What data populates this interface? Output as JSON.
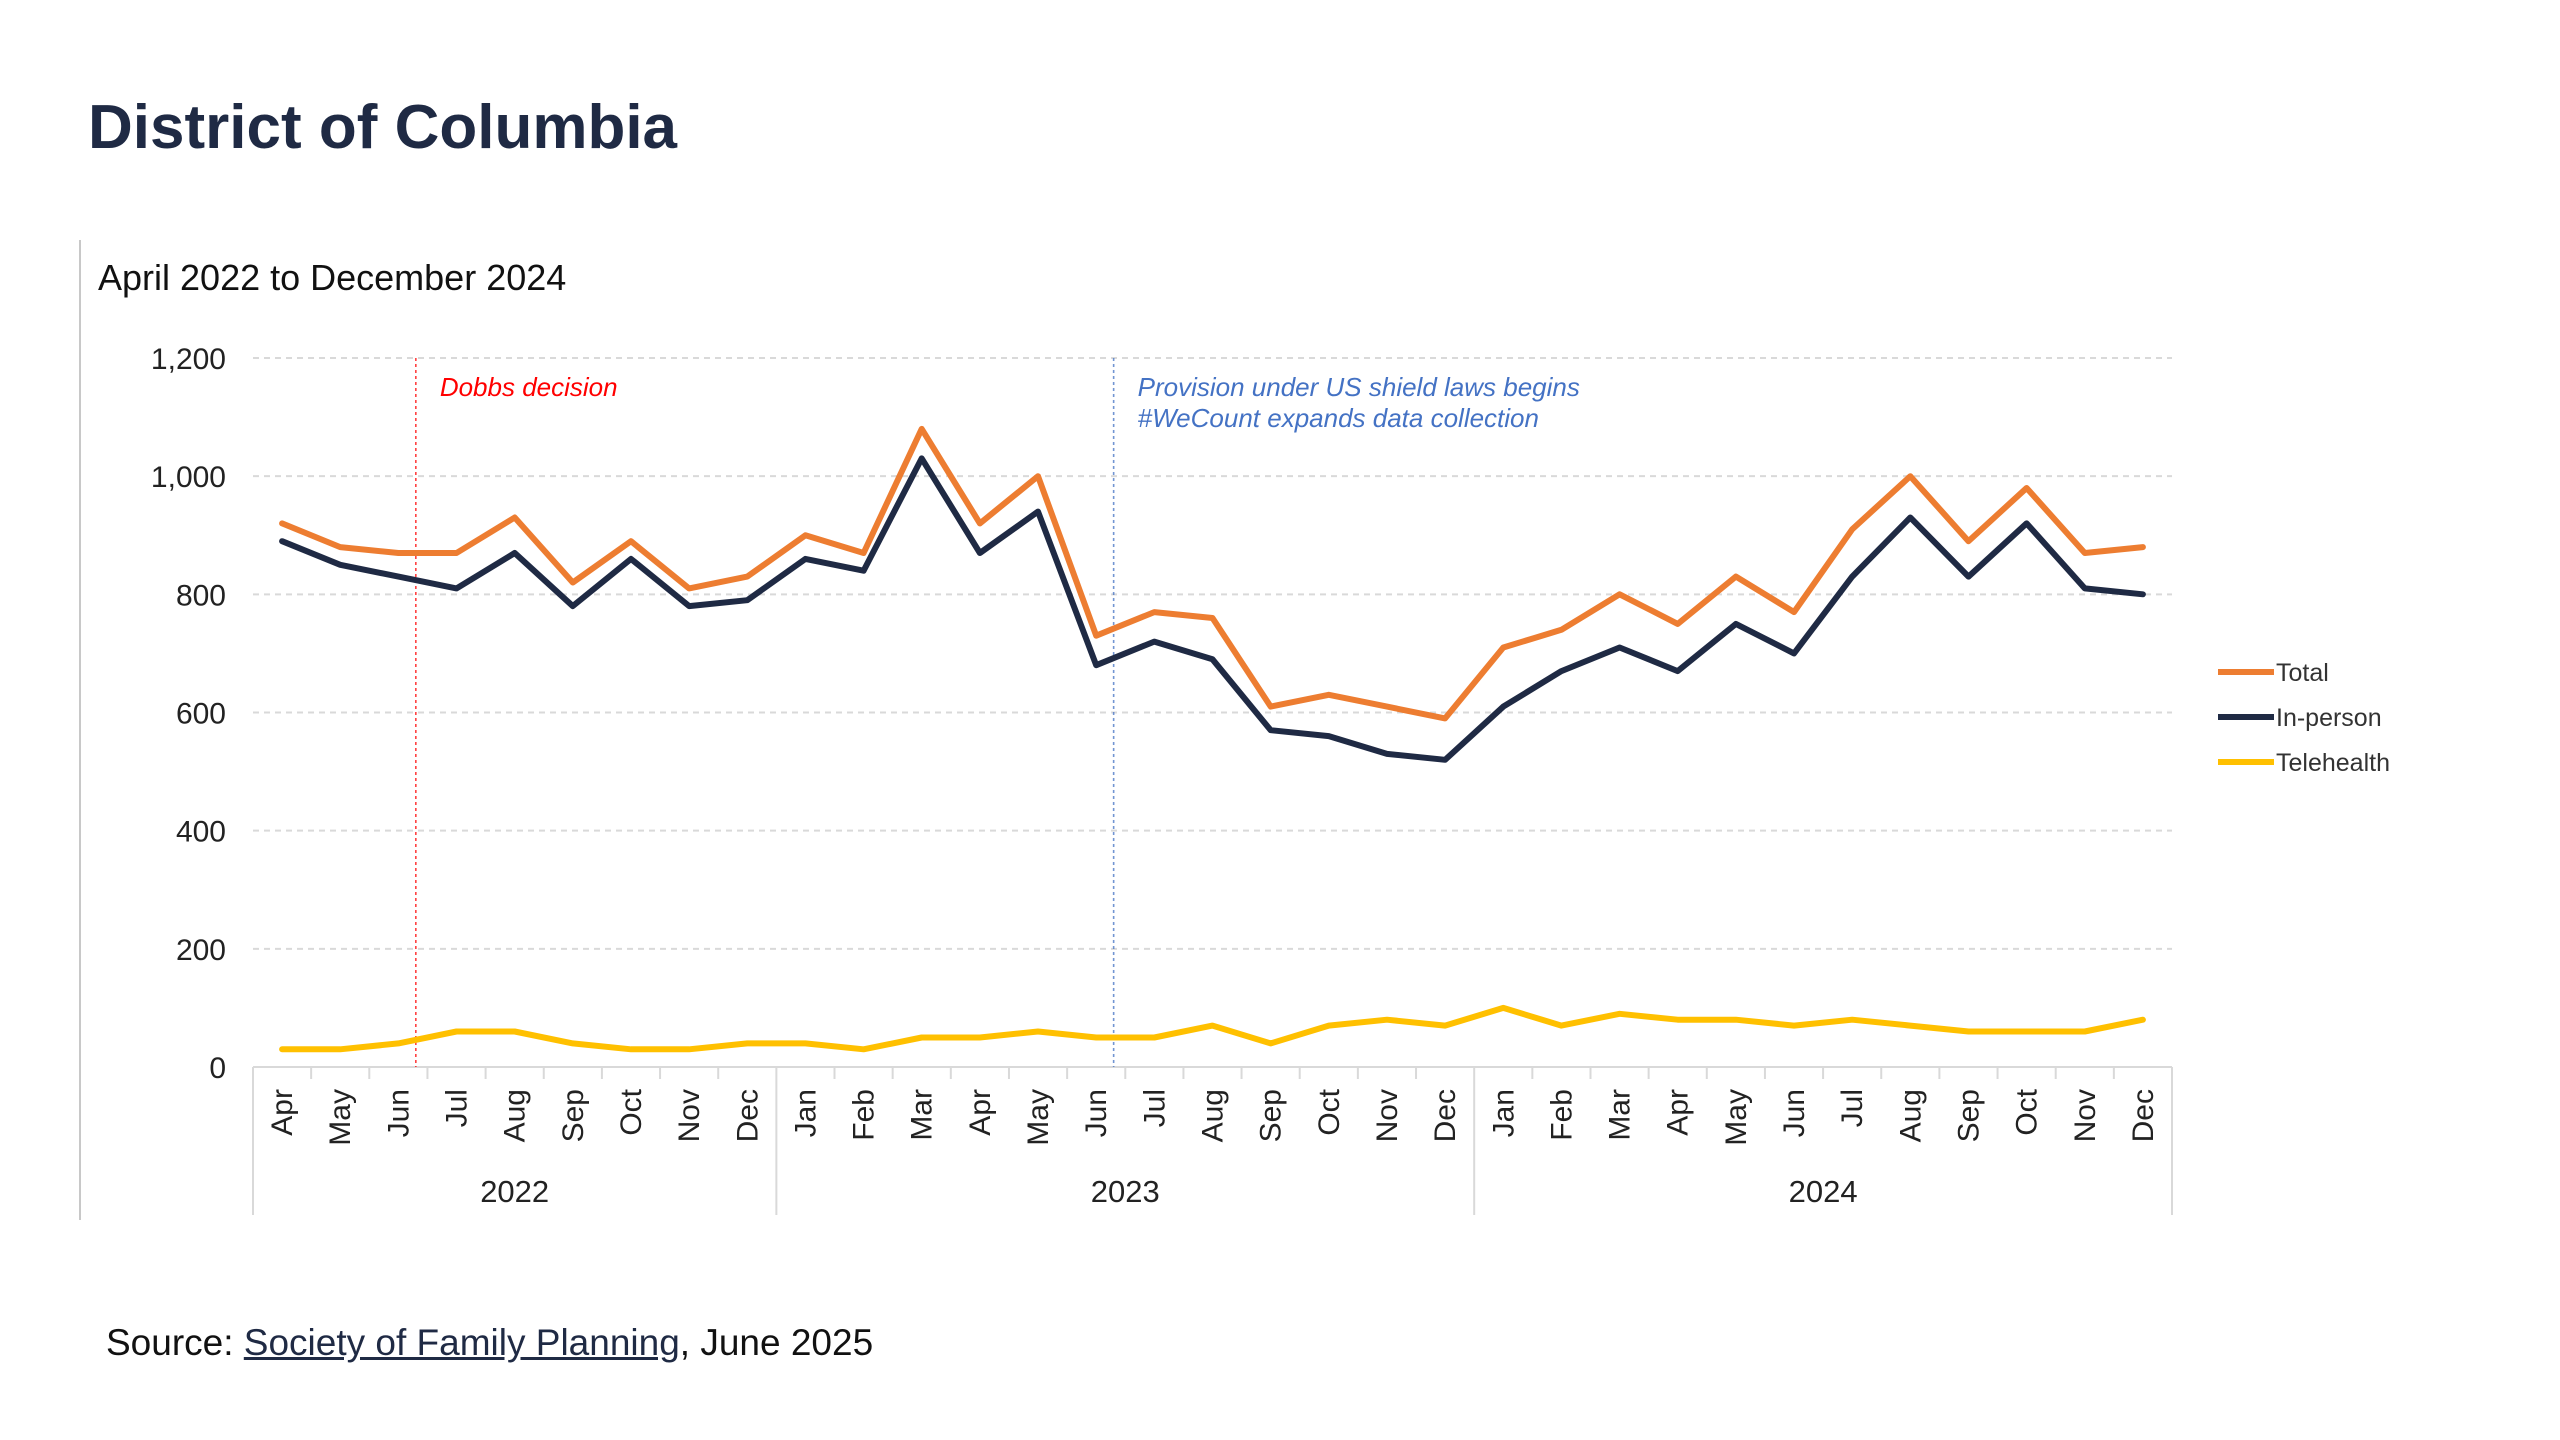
{
  "page": {
    "title": "District of Columbia",
    "source_prefix": "Source: ",
    "source_link": "Society of Family Planning",
    "source_suffix": ", June 2025"
  },
  "chart_data": {
    "type": "line",
    "subtitle": "April 2022 to December 2024",
    "xlabel": "",
    "ylabel": "",
    "ylim": [
      0,
      1200
    ],
    "yticks": [
      "0",
      "200",
      "400",
      "600",
      "800",
      "1,000",
      "1,200"
    ],
    "grid": true,
    "legend_position": "right",
    "categories": [
      "Apr",
      "May",
      "Jun",
      "Jul",
      "Aug",
      "Sep",
      "Oct",
      "Nov",
      "Dec",
      "Jan",
      "Feb",
      "Mar",
      "Apr",
      "May",
      "Jun",
      "Jul",
      "Aug",
      "Sep",
      "Oct",
      "Nov",
      "Dec",
      "Jan",
      "Feb",
      "Mar",
      "Apr",
      "May",
      "Jun",
      "Jul",
      "Aug",
      "Sep",
      "Oct",
      "Nov",
      "Dec"
    ],
    "year_groups": [
      {
        "label": "2022",
        "count": 9
      },
      {
        "label": "2023",
        "count": 12
      },
      {
        "label": "2024",
        "count": 12
      }
    ],
    "series": [
      {
        "name": "Total",
        "color": "#ed7d31",
        "values": [
          920,
          880,
          870,
          870,
          930,
          820,
          890,
          810,
          830,
          900,
          870,
          1080,
          920,
          1000,
          730,
          770,
          760,
          610,
          630,
          610,
          590,
          710,
          740,
          800,
          750,
          830,
          770,
          910,
          1000,
          890,
          980,
          870,
          880
        ]
      },
      {
        "name": "In-person",
        "color": "#1f2a44",
        "values": [
          890,
          850,
          830,
          810,
          870,
          780,
          860,
          780,
          790,
          860,
          840,
          1030,
          870,
          940,
          680,
          720,
          690,
          570,
          560,
          530,
          520,
          610,
          670,
          710,
          670,
          750,
          700,
          830,
          930,
          830,
          920,
          810,
          800
        ]
      },
      {
        "name": "Telehealth",
        "color": "#ffc000",
        "values": [
          30,
          30,
          40,
          60,
          60,
          40,
          30,
          30,
          40,
          40,
          30,
          50,
          50,
          60,
          50,
          50,
          70,
          40,
          70,
          80,
          70,
          100,
          70,
          90,
          80,
          80,
          70,
          80,
          70,
          60,
          60,
          60,
          80
        ]
      }
    ],
    "annotations": [
      {
        "text": "Dobbs decision",
        "position_between": [
          "Jun",
          "Jul"
        ],
        "year": "2022",
        "color": "#ff0000"
      },
      {
        "text": "Provision under US shield laws begins",
        "position_between": [
          "Jun",
          "Jul"
        ],
        "year": "2023",
        "color": "#4472c4"
      },
      {
        "text": "#WeCount expands data collection",
        "position_between": [
          "Jun",
          "Jul"
        ],
        "year": "2023",
        "color": "#4472c4"
      }
    ]
  }
}
